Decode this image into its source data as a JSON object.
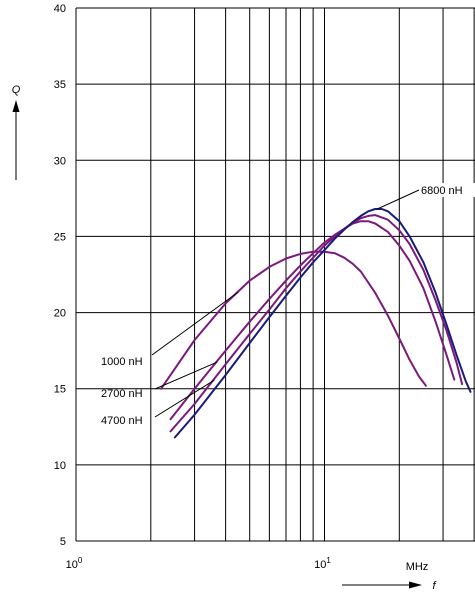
{
  "chart_data": {
    "type": "line",
    "title": "",
    "ylabel": "Q",
    "xlabel": "f",
    "x_unit": "MHz",
    "x_scale": "log",
    "xlim": [
      1,
      40
    ],
    "ylim": [
      5,
      40
    ],
    "y_ticks": [
      5,
      10,
      15,
      20,
      25,
      30,
      35,
      40
    ],
    "y_tick_labels": [
      "5",
      "10",
      "15",
      "20",
      "25",
      "30",
      "35",
      "40"
    ],
    "x_tick_labels": [
      {
        "base": "10",
        "exp": "0",
        "value": 1
      },
      {
        "base": "10",
        "exp": "1",
        "value": 10
      }
    ],
    "grid": true,
    "series": [
      {
        "name": "1000 nH",
        "color": "#7a1a7a",
        "x": [
          2.2,
          3.0,
          4.0,
          5.0,
          6.0,
          7.0,
          8.0,
          9.0,
          10.0,
          11.0,
          12.0,
          13.0,
          14.0,
          16.0,
          18.0,
          20.0,
          22.0,
          24.0,
          25.6
        ],
        "y": [
          15.0,
          18.2,
          20.6,
          22.1,
          23.0,
          23.55,
          23.85,
          24.0,
          24.0,
          23.9,
          23.6,
          23.2,
          22.7,
          21.3,
          19.8,
          18.3,
          16.9,
          15.8,
          15.2
        ]
      },
      {
        "name": "2700 nH",
        "color": "#7a1a7a",
        "x": [
          2.4,
          3.0,
          4.0,
          5.0,
          6.0,
          7.0,
          8.0,
          9.0,
          10.0,
          11.0,
          12.0,
          13.0,
          14.0,
          15.0,
          16.0,
          18.0,
          20.0,
          22.0,
          25.0,
          28.0,
          31.0,
          33.3
        ],
        "y": [
          13.0,
          15.0,
          17.5,
          19.4,
          20.9,
          22.1,
          23.1,
          23.9,
          24.6,
          25.1,
          25.5,
          25.85,
          26.0,
          26.0,
          25.85,
          25.3,
          24.4,
          23.4,
          21.6,
          19.4,
          17.2,
          15.6
        ]
      },
      {
        "name": "4700 nH",
        "color": "#7a1a7a",
        "x": [
          2.4,
          3.0,
          4.0,
          5.0,
          6.0,
          7.0,
          8.0,
          9.0,
          10.0,
          11.0,
          12.0,
          13.0,
          14.0,
          15.0,
          16.0,
          18.0,
          20.0,
          22.0,
          25.0,
          28.0,
          31.0,
          34.0,
          35.8
        ],
        "y": [
          12.2,
          14.0,
          16.6,
          18.6,
          20.2,
          21.6,
          22.7,
          23.6,
          24.4,
          25.0,
          25.5,
          25.9,
          26.2,
          26.35,
          26.4,
          26.1,
          25.4,
          24.5,
          22.8,
          20.8,
          18.8,
          16.7,
          15.3
        ]
      },
      {
        "name": "6800 nH",
        "color": "#1a1a7a",
        "x": [
          2.5,
          3.0,
          4.0,
          5.0,
          6.0,
          7.0,
          8.0,
          9.0,
          10.0,
          11.0,
          12.0,
          13.0,
          14.0,
          15.0,
          16.0,
          17.0,
          18.0,
          20.0,
          22.0,
          25.0,
          28.0,
          31.0,
          34.0,
          37.0,
          38.7
        ],
        "y": [
          11.8,
          13.3,
          15.9,
          18.0,
          19.7,
          21.1,
          22.3,
          23.3,
          24.1,
          24.85,
          25.45,
          25.95,
          26.35,
          26.65,
          26.8,
          26.8,
          26.65,
          26.0,
          25.0,
          23.3,
          21.3,
          19.2,
          17.2,
          15.5,
          14.8
        ]
      }
    ]
  }
}
